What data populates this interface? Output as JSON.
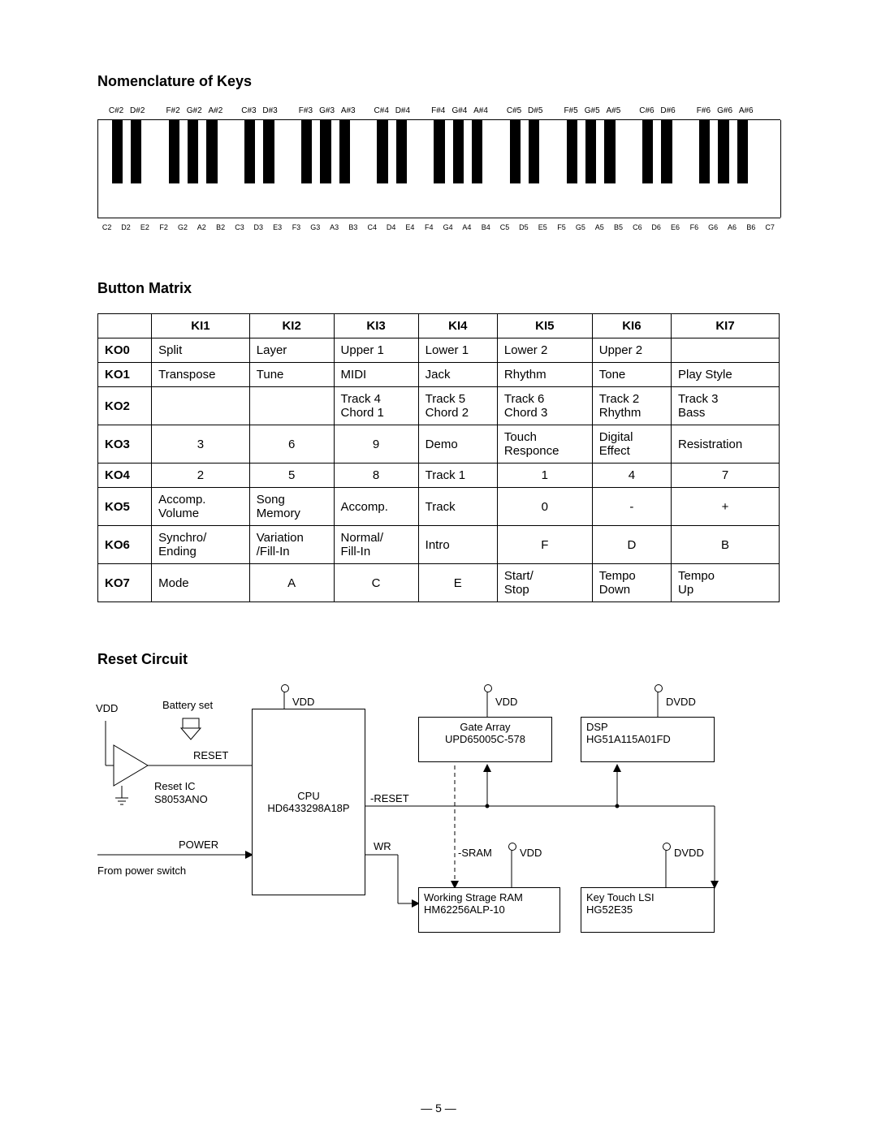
{
  "page_number_text": "— 5 —",
  "sections": {
    "keys_title": "Nomenclature of Keys",
    "matrix_title": "Button Matrix",
    "reset_title": "Reset Circuit"
  },
  "keyboard": {
    "white_keys_count": 36,
    "white_labels": [
      "C2",
      "D2",
      "E2",
      "F2",
      "G2",
      "A2",
      "B2",
      "C3",
      "D3",
      "E3",
      "F3",
      "G3",
      "A3",
      "B3",
      "C4",
      "D4",
      "E4",
      "F4",
      "G4",
      "A4",
      "B4",
      "C5",
      "D5",
      "E5",
      "F5",
      "G5",
      "A5",
      "B5",
      "C6",
      "D6",
      "E6",
      "F6",
      "G6",
      "A6",
      "B6",
      "C7"
    ],
    "black_key_groups": [
      {
        "at_white": 0,
        "labels": [
          "C#2",
          "D#2"
        ]
      },
      {
        "at_white": 3,
        "labels": [
          "F#2",
          "G#2",
          "A#2"
        ]
      },
      {
        "at_white": 7,
        "labels": [
          "C#3",
          "D#3"
        ]
      },
      {
        "at_white": 10,
        "labels": [
          "F#3",
          "G#3",
          "A#3"
        ]
      },
      {
        "at_white": 14,
        "labels": [
          "C#4",
          "D#4"
        ]
      },
      {
        "at_white": 17,
        "labels": [
          "F#4",
          "G#4",
          "A#4"
        ]
      },
      {
        "at_white": 21,
        "labels": [
          "C#5",
          "D#5"
        ]
      },
      {
        "at_white": 24,
        "labels": [
          "F#5",
          "G#5",
          "A#5"
        ]
      },
      {
        "at_white": 28,
        "labels": [
          "C#6",
          "D#6"
        ]
      },
      {
        "at_white": 31,
        "labels": [
          "F#6",
          "G#6",
          "A#6"
        ]
      }
    ],
    "black_key_positions_white_index": [
      0,
      1,
      3,
      4,
      5,
      7,
      8,
      10,
      11,
      12,
      14,
      15,
      17,
      18,
      19,
      21,
      22,
      24,
      25,
      26,
      28,
      29,
      31,
      32,
      33
    ]
  },
  "matrix": {
    "col_headers": [
      "KI1",
      "KI2",
      "KI3",
      "KI4",
      "KI5",
      "KI6",
      "KI7"
    ],
    "rows": [
      {
        "h": "KO0",
        "cells": [
          "Split",
          "Layer",
          "Upper 1",
          "Lower 1",
          "Lower 2",
          "Upper 2",
          ""
        ]
      },
      {
        "h": "KO1",
        "cells": [
          "Transpose",
          "Tune",
          "MIDI",
          "Jack",
          "Rhythm",
          "Tone",
          "Play Style"
        ]
      },
      {
        "h": "KO2",
        "cells": [
          "",
          "",
          "Track 4\nChord 1",
          "Track 5\nChord 2",
          "Track 6\nChord 3",
          "Track 2\nRhythm",
          "Track 3\nBass"
        ]
      },
      {
        "h": "KO3",
        "cells": [
          "3",
          "6",
          "9",
          "Demo",
          "Touch\nResponce",
          "Digital\nEffect",
          "Resistration"
        ]
      },
      {
        "h": "KO4",
        "cells": [
          "2",
          "5",
          "8",
          "Track 1",
          "1",
          "4",
          "7"
        ]
      },
      {
        "h": "KO5",
        "cells": [
          "Accomp.\nVolume",
          "Song\nMemory",
          "Accomp.",
          "Track",
          "0",
          "-",
          "+"
        ]
      },
      {
        "h": "KO6",
        "cells": [
          "Synchro/\nEnding",
          "Variation\n/Fill-In",
          "Normal/\nFill-In",
          "Intro",
          "F",
          "D",
          "B"
        ]
      },
      {
        "h": "KO7",
        "cells": [
          "Mode",
          "A",
          "C",
          "E",
          "Start/\nStop",
          "Tempo\nDown",
          "Tempo\nUp"
        ]
      }
    ],
    "centered_cells": [
      [
        3,
        0
      ],
      [
        3,
        1
      ],
      [
        3,
        2
      ],
      [
        4,
        0
      ],
      [
        4,
        1
      ],
      [
        4,
        2
      ],
      [
        4,
        4
      ],
      [
        4,
        5
      ],
      [
        4,
        6
      ],
      [
        5,
        4
      ],
      [
        5,
        5
      ],
      [
        5,
        6
      ],
      [
        6,
        4
      ],
      [
        6,
        5
      ],
      [
        6,
        6
      ],
      [
        7,
        1
      ],
      [
        7,
        2
      ],
      [
        7,
        3
      ]
    ]
  },
  "circuit": {
    "labels": {
      "vdd_left": "VDD",
      "battery": "Battery set",
      "reset": "RESET",
      "reset_ic1": "Reset IC",
      "reset_ic2": "S8053ANO",
      "power": "POWER",
      "from_power": "From power switch",
      "cpu1": "CPU",
      "cpu2": "HD6433298A18P",
      "cpu_vdd": "VDD",
      "neg_reset": "-RESET",
      "wr": "WR",
      "ga1": "Gate Array",
      "ga2": "UPD65005C-578",
      "ga_vdd": "VDD",
      "sram": "-SRAM",
      "ram1": "Working Strage RAM",
      "ram2": "HM62256ALP-10",
      "ram_vdd": "VDD",
      "dsp1": "DSP",
      "dsp2": "HG51A115A01FD",
      "dsp_dvdd": "DVDD",
      "ktl1": "Key Touch LSI",
      "ktl2": "HG52E35",
      "ktl_dvdd": "DVDD"
    }
  },
  "colors": {
    "line": "#000000",
    "bg": "#ffffff"
  }
}
